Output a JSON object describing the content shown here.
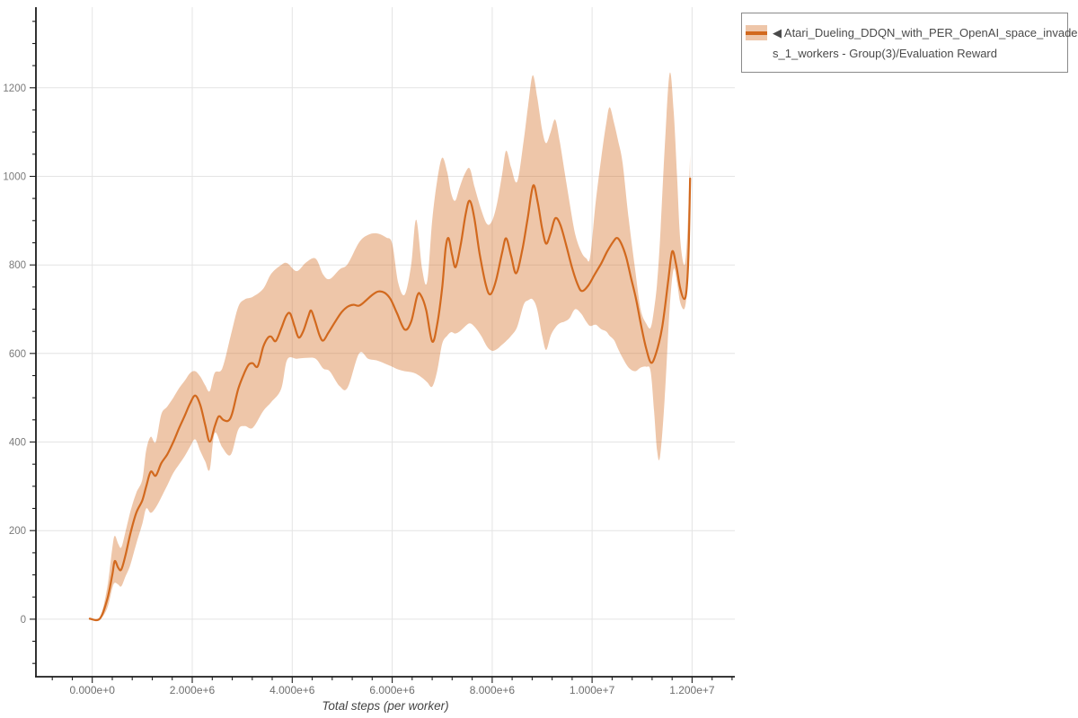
{
  "colors": {
    "series_line": "#d2691e",
    "band_fill": "#d2691e",
    "band_opacity": 0.38,
    "grid": "#e4e4e4",
    "axis": "#1c1c1c",
    "x_tick_label": "#6e6e6e",
    "y_tick_label": "#7a7a7a",
    "axis_title": "#444444",
    "legend_border": "#8a8a8a",
    "legend_text": "#4a4a4a",
    "background": "#ffffff"
  },
  "legend": {
    "lines": [
      "◀ Atari_Dueling_DDQN_with_PER_OpenAI_space_invader",
      "s_1_workers - Group(3)/Evaluation Reward"
    ],
    "series_name": "Atari_Dueling_DDQN_with_PER_OpenAI_space_invaders_1_workers - Group(3)/Evaluation Reward"
  },
  "chart_data": {
    "type": "line",
    "title": "",
    "xlabel": "Total steps (per worker)",
    "ylabel": "",
    "grid": true,
    "legend_position": "top-right-outside",
    "x_axis": {
      "range": [
        -1127000,
        12855000
      ],
      "tick_values": [
        0,
        2000000,
        4000000,
        6000000,
        8000000,
        10000000,
        12000000
      ],
      "tick_labels": [
        "0.000e+0",
        "2.000e+6",
        "4.000e+6",
        "6.000e+6",
        "8.000e+6",
        "1.000e+7",
        "1.200e+7"
      ],
      "minor_tick_step": 400000
    },
    "y_axis": {
      "range": [
        -130,
        1382
      ],
      "tick_values": [
        0,
        200,
        400,
        600,
        800,
        1000,
        1200
      ],
      "tick_labels": [
        "0",
        "200",
        "400",
        "600",
        "800",
        "1000",
        "1200"
      ],
      "minor_tick_step": 50
    },
    "series": [
      {
        "name": "Atari_Dueling_DDQN_with_PER_OpenAI_space_invaders_1_workers - Group(3)/Evaluation Reward",
        "x": [
          -50000,
          150000,
          300000,
          400000,
          450000,
          520000,
          580000,
          660000,
          760000,
          880000,
          1000000,
          1080000,
          1170000,
          1270000,
          1380000,
          1500000,
          1620000,
          1740000,
          1860000,
          1960000,
          2060000,
          2160000,
          2260000,
          2350000,
          2450000,
          2530000,
          2620000,
          2720000,
          2800000,
          2920000,
          3050000,
          3130000,
          3210000,
          3310000,
          3420000,
          3510000,
          3580000,
          3670000,
          3780000,
          3880000,
          3960000,
          4050000,
          4130000,
          4220000,
          4320000,
          4380000,
          4460000,
          4550000,
          4620000,
          4720000,
          4850000,
          4980000,
          5100000,
          5220000,
          5340000,
          5480000,
          5600000,
          5720000,
          5850000,
          5970000,
          6100000,
          6250000,
          6380000,
          6500000,
          6570000,
          6680000,
          6800000,
          6900000,
          7000000,
          7070000,
          7130000,
          7200000,
          7270000,
          7370000,
          7470000,
          7550000,
          7640000,
          7750000,
          7880000,
          7970000,
          8080000,
          8200000,
          8280000,
          8380000,
          8480000,
          8600000,
          8710000,
          8820000,
          8910000,
          9000000,
          9080000,
          9170000,
          9260000,
          9360000,
          9480000,
          9600000,
          9720000,
          9800000,
          9920000,
          10050000,
          10180000,
          10300000,
          10420000,
          10500000,
          10580000,
          10680000,
          10780000,
          10880000,
          10980000,
          11080000,
          11180000,
          11280000,
          11400000,
          11520000,
          11600000,
          11680000,
          11760000,
          11840000,
          11890000,
          11930000,
          11960000
        ],
        "y": [
          1,
          1,
          45,
          100,
          131,
          116,
          112,
          142,
          192,
          240,
          268,
          300,
          333,
          324,
          352,
          372,
          400,
          432,
          462,
          488,
          505,
          484,
          438,
          401,
          435,
          458,
          450,
          448,
          465,
          520,
          558,
          575,
          578,
          571,
          615,
          635,
          638,
          628,
          656,
          685,
          690,
          660,
          636,
          650,
          683,
          697,
          672,
          640,
          629,
          646,
          670,
          692,
          705,
          710,
          708,
          720,
          732,
          740,
          737,
          722,
          690,
          654,
          672,
          730,
          732,
          698,
          627,
          665,
          748,
          838,
          860,
          822,
          795,
          845,
          915,
          945,
          908,
          825,
          752,
          734,
          766,
          828,
          860,
          820,
          781,
          832,
          905,
          979,
          942,
          882,
          848,
          872,
          905,
          892,
          845,
          793,
          753,
          741,
          753,
          778,
          803,
          830,
          852,
          861,
          849,
          818,
          770,
          722,
          663,
          612,
          579,
          601,
          658,
          762,
          830,
          801,
          748,
          723,
          745,
          830,
          995
        ],
        "band": {
          "x": [
            -50000,
            150000,
            300000,
            400000,
            450000,
            520000,
            580000,
            660000,
            760000,
            880000,
            1000000,
            1080000,
            1170000,
            1270000,
            1380000,
            1500000,
            1620000,
            1740000,
            1860000,
            1960000,
            2060000,
            2160000,
            2260000,
            2350000,
            2450000,
            2600000,
            2770000,
            2920000,
            3050000,
            3210000,
            3420000,
            3580000,
            3780000,
            3900000,
            4090000,
            4280000,
            4470000,
            4620000,
            4750000,
            4950000,
            5110000,
            5340000,
            5520000,
            5700000,
            5880000,
            6000000,
            6120000,
            6250000,
            6380000,
            6480000,
            6600000,
            6700000,
            6800000,
            6900000,
            7000000,
            7100000,
            7180000,
            7260000,
            7350000,
            7450000,
            7550000,
            7650000,
            7780000,
            7900000,
            8000000,
            8100000,
            8200000,
            8280000,
            8380000,
            8500000,
            8630000,
            8720000,
            8810000,
            8900000,
            9000000,
            9080000,
            9170000,
            9260000,
            9350000,
            9450000,
            9550000,
            9660000,
            9780000,
            9880000,
            9960000,
            10070000,
            10180000,
            10280000,
            10350000,
            10440000,
            10520000,
            10610000,
            10730000,
            10860000,
            10970000,
            11080000,
            11170000,
            11240000,
            11300000,
            11360000,
            11450000,
            11550000,
            11630000,
            11700000,
            11760000,
            11840000,
            11890000,
            11930000,
            11960000
          ],
          "lower": [
            0,
            0,
            25,
            70,
            82,
            78,
            74,
            95,
            122,
            170,
            215,
            250,
            240,
            252,
            275,
            302,
            330,
            350,
            370,
            390,
            406,
            380,
            356,
            338,
            420,
            388,
            371,
            428,
            436,
            432,
            470,
            490,
            520,
            586,
            588,
            590,
            588,
            566,
            560,
            526,
            523,
            600,
            588,
            584,
            576,
            570,
            564,
            560,
            558,
            554,
            545,
            535,
            525,
            560,
            622,
            640,
            648,
            645,
            650,
            660,
            668,
            660,
            640,
            615,
            606,
            610,
            620,
            628,
            640,
            660,
            710,
            720,
            722,
            700,
            640,
            608,
            640,
            658,
            668,
            672,
            680,
            700,
            690,
            672,
            662,
            665,
            655,
            650,
            640,
            630,
            610,
            590,
            568,
            560,
            568,
            570,
            560,
            470,
            380,
            368,
            495,
            700,
            790,
            760,
            716,
            700,
            730,
            800,
            940
          ],
          "upper": [
            2,
            3,
            72,
            160,
            188,
            170,
            162,
            195,
            242,
            285,
            315,
            382,
            412,
            400,
            462,
            480,
            500,
            522,
            540,
            556,
            560,
            548,
            528,
            515,
            556,
            566,
            640,
            705,
            722,
            728,
            746,
            780,
            800,
            804,
            786,
            806,
            814,
            778,
            768,
            790,
            802,
            851,
            868,
            871,
            862,
            848,
            760,
            733,
            800,
            902,
            790,
            762,
            900,
            990,
            1042,
            1010,
            962,
            945,
            975,
            1005,
            1018,
            975,
            925,
            892,
            900,
            940,
            1005,
            1058,
            1020,
            988,
            1080,
            1160,
            1228,
            1180,
            1105,
            1075,
            1100,
            1128,
            1080,
            1010,
            940,
            870,
            830,
            815,
            818,
            940,
            1040,
            1118,
            1156,
            1120,
            1080,
            1030,
            905,
            790,
            700,
            668,
            658,
            700,
            760,
            860,
            1060,
            1232,
            1150,
            1000,
            860,
            800,
            840,
            940,
            1048
          ]
        }
      }
    ]
  }
}
